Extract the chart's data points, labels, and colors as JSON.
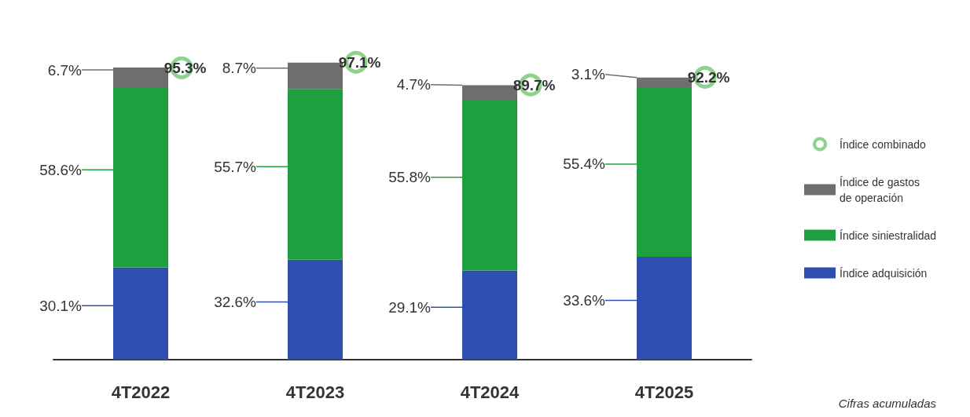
{
  "chart_data": {
    "type": "bar",
    "stacked": true,
    "legend": "right",
    "categories": [
      "4T2022",
      "4T2023",
      "4T2024",
      "4T2025"
    ],
    "series": [
      {
        "name": "Índice adquisición",
        "color": "#2f4fb0",
        "values": [
          30.1,
          32.6,
          29.1,
          33.6
        ],
        "value_labels": [
          "30.1%",
          "32.6%",
          "29.1%",
          "33.6%"
        ]
      },
      {
        "name": "Índice siniestralidad",
        "color": "#1fa040",
        "values": [
          58.6,
          55.7,
          55.8,
          55.4
        ],
        "value_labels": [
          "58.6%",
          "55.7%",
          "55.8%",
          "55.4%"
        ]
      },
      {
        "name": "Índice de gastos de operación",
        "color": "#6e6e6e",
        "values": [
          6.7,
          8.7,
          4.7,
          3.1
        ],
        "value_labels": [
          "6.7%",
          "8.7%",
          "4.7%",
          "3.1%"
        ]
      },
      {
        "name": "Índice combinado",
        "type": "scatter",
        "marker": "circle",
        "color": "#8fd18f",
        "values": [
          95.3,
          97.1,
          89.7,
          92.2
        ],
        "value_labels": [
          "95.3%",
          "97.1%",
          "89.7%",
          "92.2%"
        ]
      }
    ],
    "annotations": [
      "Cifras acumuladas"
    ]
  }
}
